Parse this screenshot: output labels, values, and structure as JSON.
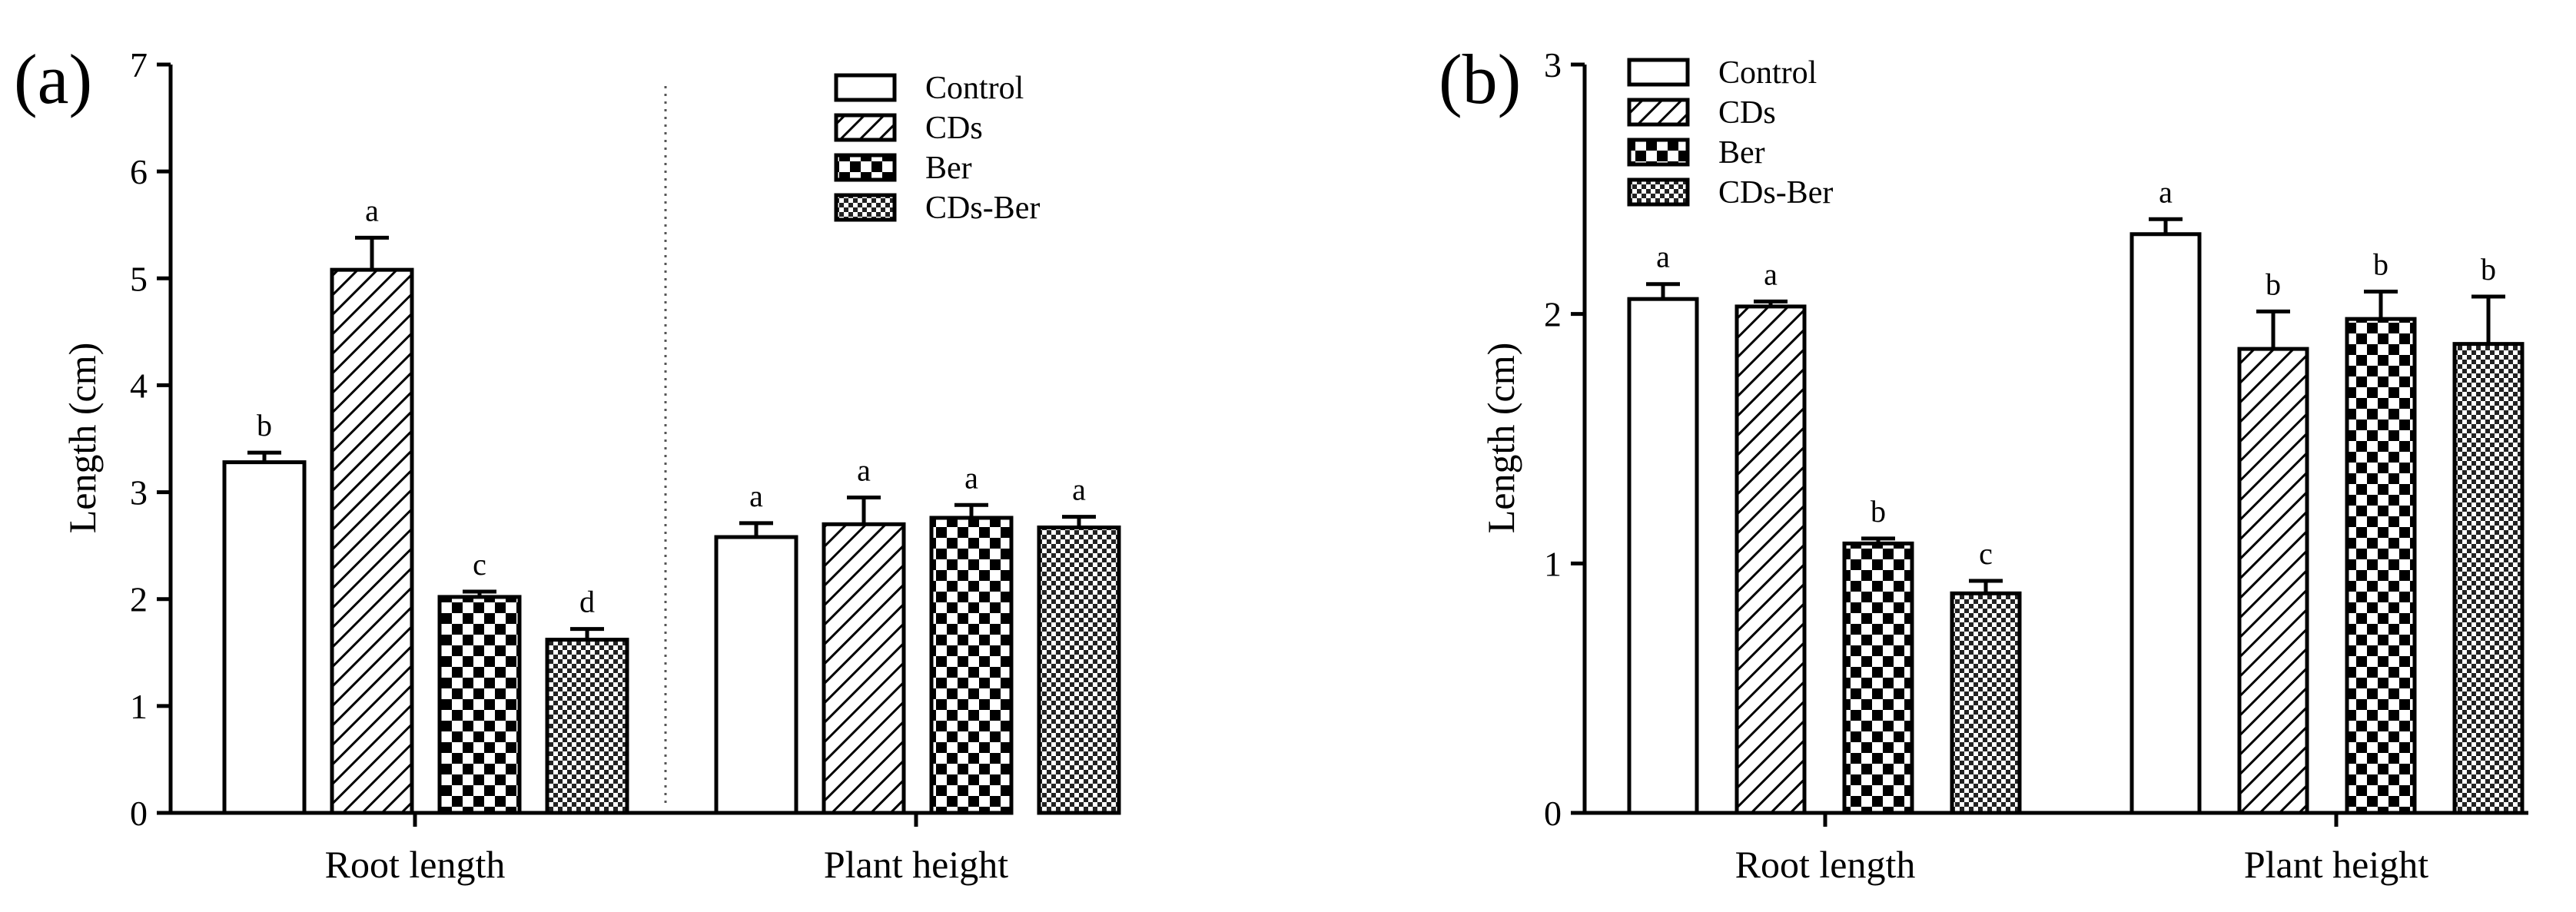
{
  "chart_data": [
    {
      "type": "bar",
      "panel": "(a)",
      "ylabel": "Length (cm)",
      "xlabel": "",
      "ylim": [
        0,
        7
      ],
      "yticks": [
        0,
        1,
        2,
        3,
        4,
        5,
        6,
        7
      ],
      "groups": [
        "Root length",
        "Plant height"
      ],
      "series": [
        {
          "name": "Control",
          "pattern": "open",
          "values": [
            3.28,
            2.58
          ],
          "errors": [
            0.09,
            0.13
          ],
          "letters": [
            "b",
            "a"
          ]
        },
        {
          "name": "CDs",
          "pattern": "hatch",
          "values": [
            5.08,
            2.7
          ],
          "errors": [
            0.3,
            0.25
          ],
          "letters": [
            "a",
            "a"
          ]
        },
        {
          "name": "Ber",
          "pattern": "checker",
          "values": [
            2.02,
            2.76
          ],
          "errors": [
            0.05,
            0.12
          ],
          "letters": [
            "c",
            "a"
          ]
        },
        {
          "name": "CDs-Ber",
          "pattern": "fine-checker",
          "values": [
            1.62,
            2.67
          ],
          "errors": [
            0.1,
            0.1
          ],
          "letters": [
            "d",
            "a"
          ]
        }
      ],
      "group_divider": "dotted"
    },
    {
      "type": "bar",
      "panel": "(b)",
      "ylabel": "Length (cm)",
      "xlabel": "",
      "ylim": [
        0,
        3
      ],
      "yticks": [
        0,
        1,
        2,
        3
      ],
      "groups": [
        "Root length",
        "Plant height"
      ],
      "series": [
        {
          "name": "Control",
          "pattern": "open",
          "values": [
            2.06,
            2.32
          ],
          "errors": [
            0.06,
            0.06
          ],
          "letters": [
            "a",
            "a"
          ]
        },
        {
          "name": "CDs",
          "pattern": "hatch",
          "values": [
            2.03,
            1.86
          ],
          "errors": [
            0.02,
            0.15
          ],
          "letters": [
            "a",
            "b"
          ]
        },
        {
          "name": "Ber",
          "pattern": "checker",
          "values": [
            1.08,
            1.98
          ],
          "errors": [
            0.02,
            0.11
          ],
          "letters": [
            "b",
            "b"
          ]
        },
        {
          "name": "CDs-Ber",
          "pattern": "fine-checker",
          "values": [
            0.88,
            1.88
          ],
          "errors": [
            0.05,
            0.19
          ],
          "letters": [
            "c",
            "b"
          ]
        }
      ]
    }
  ]
}
